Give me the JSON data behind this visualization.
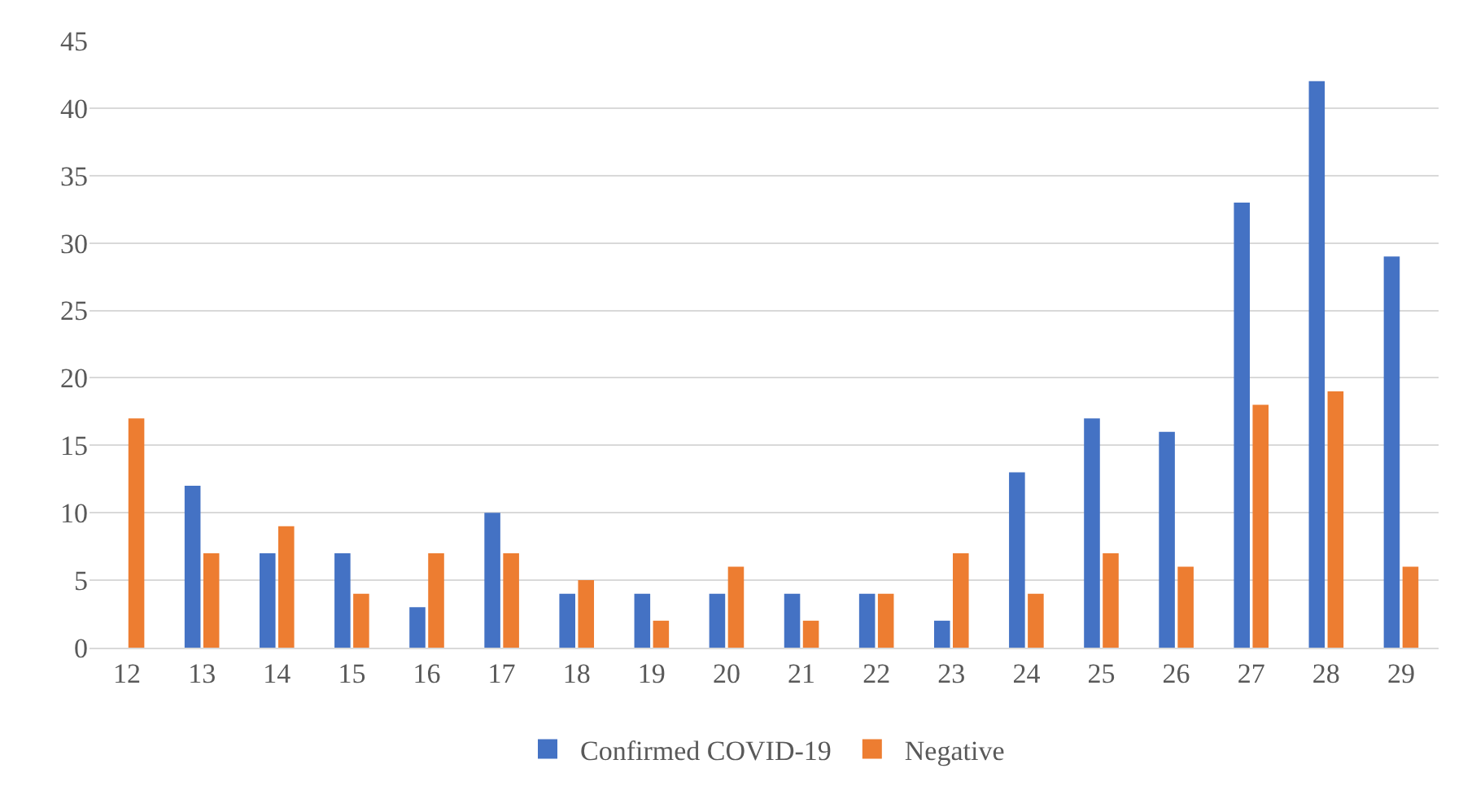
{
  "chart_data": {
    "type": "bar",
    "categories": [
      "12",
      "13",
      "14",
      "15",
      "16",
      "17",
      "18",
      "19",
      "20",
      "21",
      "22",
      "23",
      "24",
      "25",
      "26",
      "27",
      "28",
      "29"
    ],
    "series": [
      {
        "name": "Confirmed COVID-19",
        "color": "#4472c4",
        "values": [
          0,
          12,
          7,
          7,
          3,
          10,
          4,
          4,
          4,
          4,
          4,
          2,
          13,
          17,
          16,
          33,
          42,
          29
        ]
      },
      {
        "name": "Negative",
        "color": "#ed7d31",
        "values": [
          17,
          7,
          9,
          4,
          7,
          7,
          5,
          2,
          6,
          2,
          4,
          7,
          4,
          7,
          6,
          18,
          19,
          6
        ]
      }
    ],
    "ylim": [
      0,
      45
    ],
    "yticks": [
      0,
      5,
      10,
      15,
      20,
      25,
      30,
      35,
      40,
      45
    ],
    "grid": "y",
    "legend": "bottom"
  }
}
